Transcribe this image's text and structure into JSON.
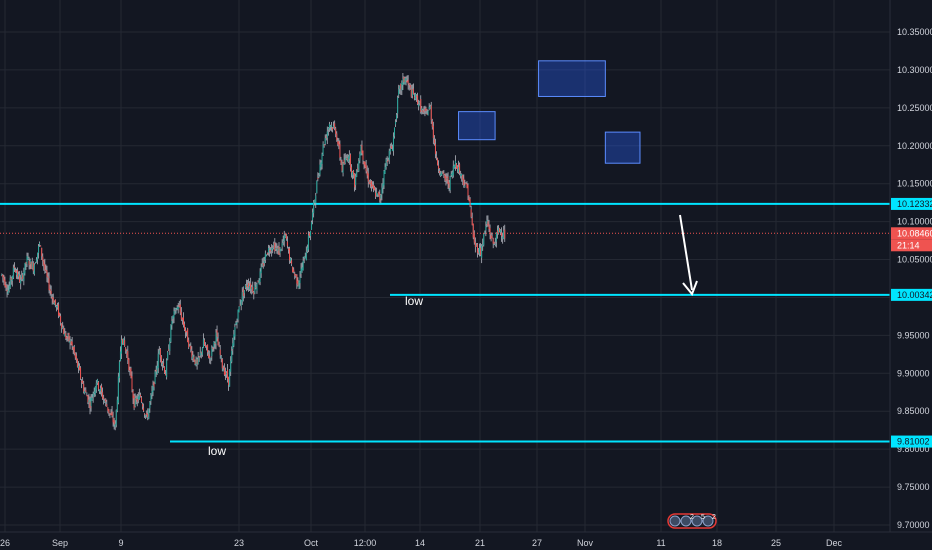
{
  "colors": {
    "background": "#131722",
    "grid": "#242833",
    "up": "#26a69a",
    "down": "#ef5350",
    "wick": "#b2b5be",
    "level_line": "#00e5ff",
    "price_line": "#ef5350",
    "zone_fill": "#2962ff",
    "arrow": "#ffffff",
    "axis_text": "#d1d4dc",
    "event_badge": "#e53935"
  },
  "chart_data": {
    "type": "candlestick",
    "x_tick_labels": [
      "26",
      "Sep",
      "9",
      "23",
      "Oct",
      "12:00",
      "14",
      "21",
      "27",
      "Nov",
      "11",
      "18",
      "25",
      "Dec"
    ],
    "y_tick_labels": [
      "10.35000",
      "10.30000",
      "10.25000",
      "10.20000",
      "10.15000",
      "10.10000",
      "10.05000",
      "10.00000",
      "9.95000",
      "9.90000",
      "9.85000",
      "9.80000",
      "9.75000",
      "9.70000"
    ],
    "ylim": [
      9.7,
      10.35
    ],
    "price_series_path": [
      [
        26,
        10.03
      ],
      [
        27,
        10.01
      ],
      [
        28,
        10.04
      ],
      [
        29,
        10.02
      ],
      [
        30,
        10.05
      ],
      [
        31,
        10.04
      ],
      [
        32,
        10.07
      ],
      [
        33,
        10.03
      ],
      [
        34,
        10.0
      ],
      [
        35,
        9.98
      ],
      [
        36,
        9.95
      ],
      [
        37,
        9.94
      ],
      [
        38,
        9.91
      ],
      [
        39,
        9.88
      ],
      [
        40,
        9.86
      ],
      [
        41,
        9.89
      ],
      [
        42,
        9.87
      ],
      [
        43,
        9.85
      ],
      [
        44,
        9.83
      ],
      [
        45,
        9.95
      ],
      [
        46,
        9.92
      ],
      [
        47,
        9.86
      ],
      [
        48,
        9.87
      ],
      [
        49,
        9.84
      ],
      [
        50,
        9.88
      ],
      [
        51,
        9.93
      ],
      [
        52,
        9.9
      ],
      [
        53,
        9.97
      ],
      [
        54,
        9.99
      ],
      [
        55,
        9.96
      ],
      [
        56,
        9.93
      ],
      [
        57,
        9.91
      ],
      [
        58,
        9.94
      ],
      [
        59,
        9.92
      ],
      [
        60,
        9.95
      ],
      [
        61,
        9.91
      ],
      [
        62,
        9.89
      ],
      [
        63,
        9.96
      ],
      [
        64,
        10.0
      ],
      [
        65,
        10.02
      ],
      [
        66,
        10.01
      ],
      [
        67,
        10.03
      ],
      [
        68,
        10.06
      ],
      [
        69,
        10.07
      ],
      [
        70,
        10.06
      ],
      [
        71,
        10.08
      ],
      [
        72,
        10.04
      ],
      [
        73,
        10.02
      ],
      [
        74,
        10.05
      ],
      [
        75,
        10.09
      ],
      [
        76,
        10.15
      ],
      [
        77,
        10.2
      ],
      [
        78,
        10.23
      ],
      [
        79,
        10.22
      ],
      [
        80,
        10.17
      ],
      [
        81,
        10.19
      ],
      [
        82,
        10.15
      ],
      [
        83,
        10.2
      ],
      [
        84,
        10.16
      ],
      [
        85,
        10.14
      ],
      [
        86,
        10.13
      ],
      [
        87,
        10.18
      ],
      [
        88,
        10.2
      ],
      [
        89,
        10.27
      ],
      [
        90,
        10.29
      ],
      [
        91,
        10.27
      ],
      [
        92,
        10.26
      ],
      [
        93,
        10.24
      ],
      [
        94,
        10.25
      ],
      [
        95,
        10.18
      ],
      [
        96,
        10.16
      ],
      [
        97,
        10.15
      ],
      [
        98,
        10.18
      ],
      [
        99,
        10.16
      ],
      [
        100,
        10.14
      ],
      [
        101,
        10.07
      ],
      [
        102,
        10.06
      ],
      [
        103,
        10.1
      ],
      [
        104,
        10.07
      ],
      [
        105,
        10.09
      ],
      [
        106,
        10.08
      ]
    ],
    "horizontal_levels": [
      {
        "value": 10.12332,
        "label": "10.12332"
      },
      {
        "value": 10.00342,
        "label": "10.00342"
      },
      {
        "value": 9.81002,
        "label": "9.81002"
      }
    ],
    "last_price": {
      "value": 10.0846,
      "label": "10.08460",
      "countdown": "21:14"
    },
    "annotations": {
      "low_labels": [
        "low",
        "low"
      ],
      "zones": 3,
      "arrow": "down"
    },
    "event_markers": [
      "2",
      "5",
      "2"
    ],
    "grid": true,
    "price_axis": "right"
  }
}
